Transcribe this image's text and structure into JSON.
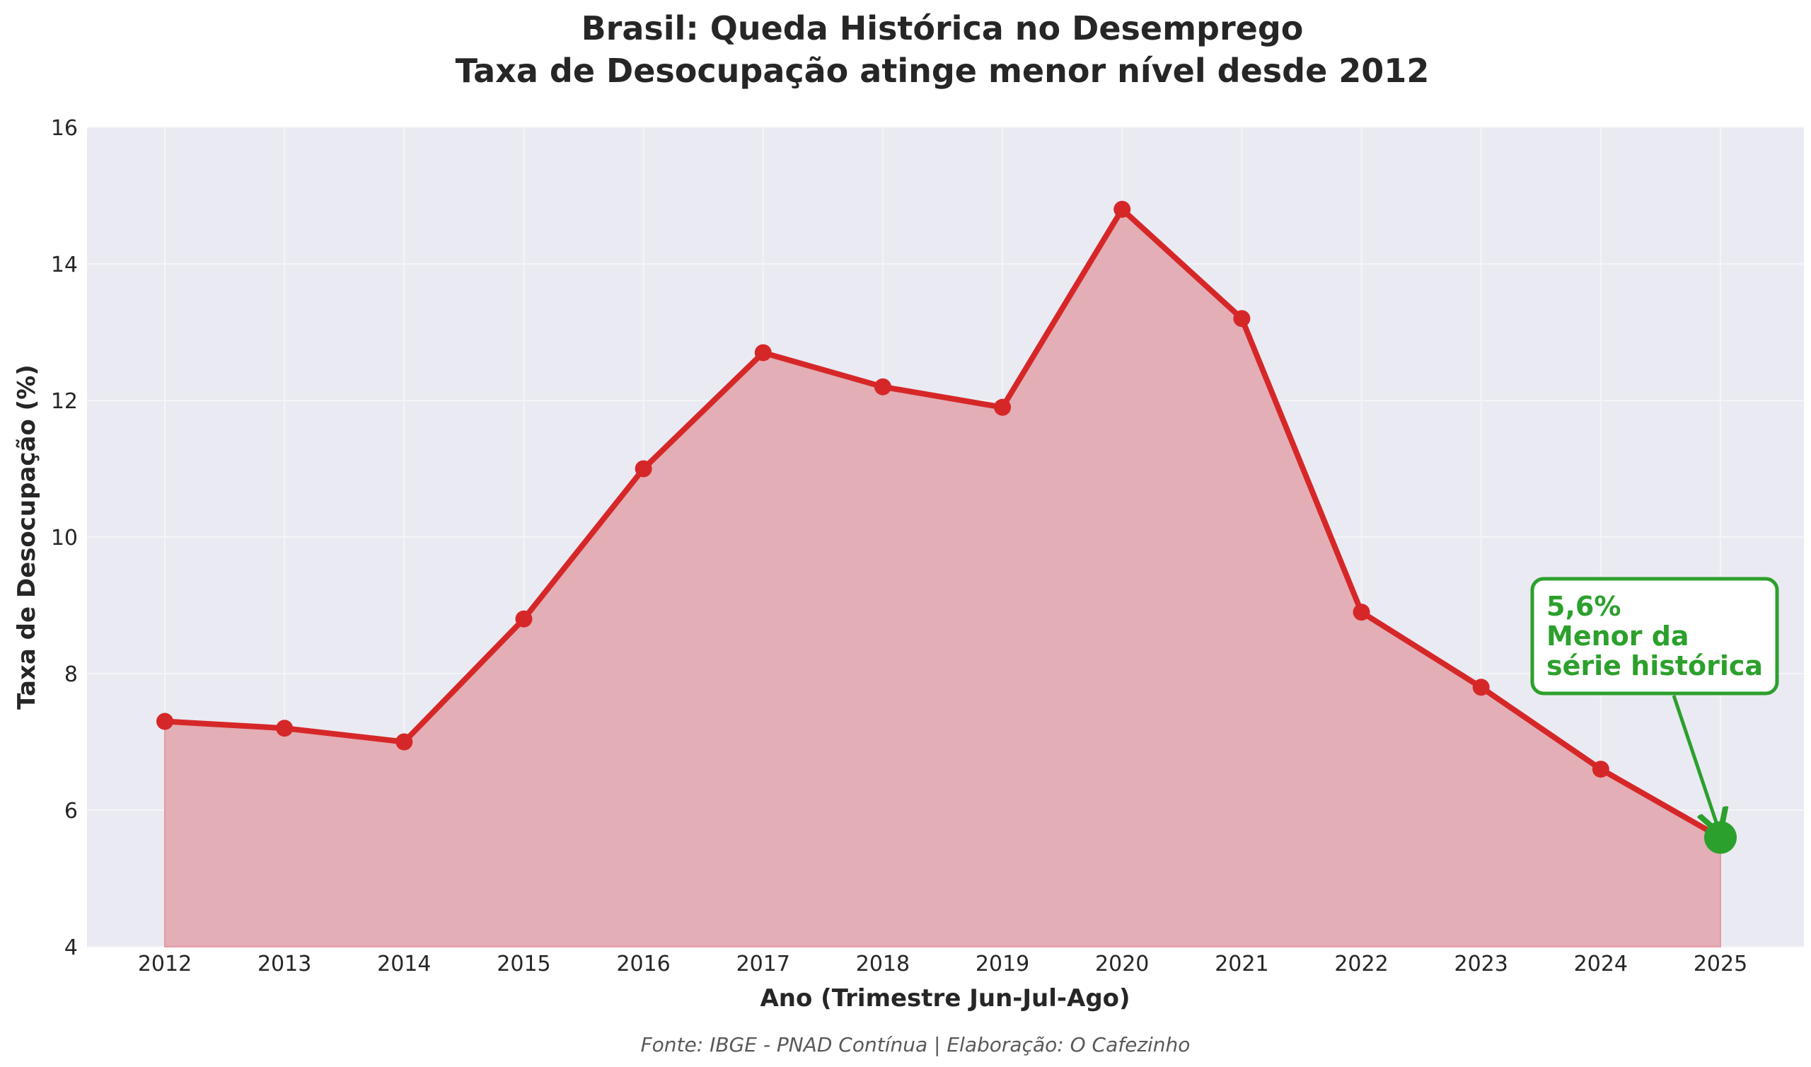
{
  "chart_data": {
    "type": "area",
    "title_line1": "Brasil: Queda Histórica no Desemprego",
    "title_line2": "Taxa de Desocupação atinge menor nível desde 2012",
    "xlabel": "Ano (Trimestre Jun-Jul-Ago)",
    "ylabel": "Taxa de Desocupação (%)",
    "x": [
      2012,
      2013,
      2014,
      2015,
      2016,
      2017,
      2018,
      2019,
      2020,
      2021,
      2022,
      2023,
      2024,
      2025
    ],
    "values": [
      7.3,
      7.2,
      7.0,
      8.8,
      11.0,
      12.7,
      12.2,
      11.9,
      14.8,
      13.2,
      8.9,
      7.8,
      6.6,
      5.6
    ],
    "ylim": [
      4,
      16
    ],
    "yticks": [
      4,
      6,
      8,
      10,
      12,
      14,
      16
    ],
    "grid": true,
    "line_color": "#d62728",
    "fill_color": "#e3aeb5",
    "highlight": {
      "x": 2025,
      "value": 5.6,
      "color": "#2ca02c",
      "annotation_lines": [
        "5,6%",
        "Menor da",
        "série histórica"
      ]
    },
    "source": "Fonte: IBGE - PNAD Contínua | Elaboração: O Cafezinho"
  }
}
